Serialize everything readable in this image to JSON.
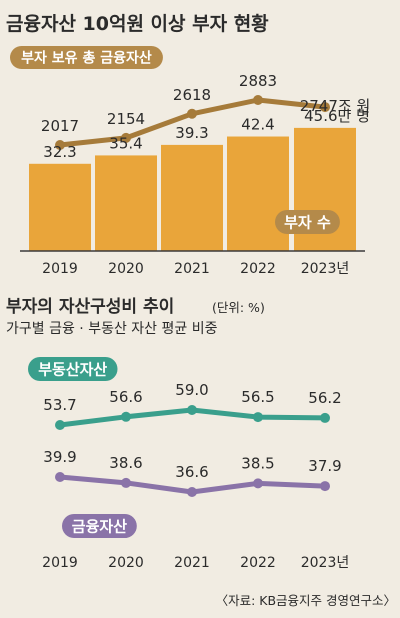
{
  "page": {
    "title": "금융자산 10억원 이상 부자 현황",
    "source": "〈자료: KB금융지주 경영연구소〉",
    "colors": {
      "background": "#f1ece2",
      "bar": "#e9a53a",
      "asset_line": "#a67b3a",
      "label_box_gold": "#b48a4a",
      "realestate_line": "#3a9f8c",
      "financial_line": "#8a73a8",
      "text": "#2b2b2b"
    }
  },
  "chart_data": [
    {
      "type": "line",
      "title": "부자 보유 총 금융자산",
      "x": [
        "2019",
        "2020",
        "2021",
        "2022",
        "2023년"
      ],
      "series": [
        {
          "name": "부자 보유 총 금융자산",
          "values": [
            2017,
            2154,
            2618,
            2883,
            2747
          ]
        }
      ],
      "value_labels": [
        "2017",
        "2154",
        "2618",
        "2883",
        "2747조 원"
      ]
    },
    {
      "type": "bar",
      "categories": [
        "2019",
        "2020",
        "2021",
        "2022",
        "2023년"
      ],
      "series": [
        {
          "name": "부자 수",
          "values": [
            32.3,
            35.4,
            39.3,
            42.4,
            45.6
          ]
        }
      ],
      "value_labels": [
        "32.3",
        "35.4",
        "39.3",
        "42.4",
        "45.6만 명"
      ]
    },
    {
      "type": "line",
      "title": "부자의 자산구성비 추이",
      "unit": "(단위: %)",
      "subtitle": "가구별 금융 · 부동산 자산 평균 비중",
      "x": [
        "2019",
        "2020",
        "2021",
        "2022",
        "2023년"
      ],
      "series": [
        {
          "name": "부동산자산",
          "values": [
            53.7,
            56.6,
            59.0,
            56.5,
            56.2
          ]
        },
        {
          "name": "금융자산",
          "values": [
            39.9,
            38.6,
            36.6,
            38.5,
            37.9
          ]
        }
      ]
    }
  ]
}
